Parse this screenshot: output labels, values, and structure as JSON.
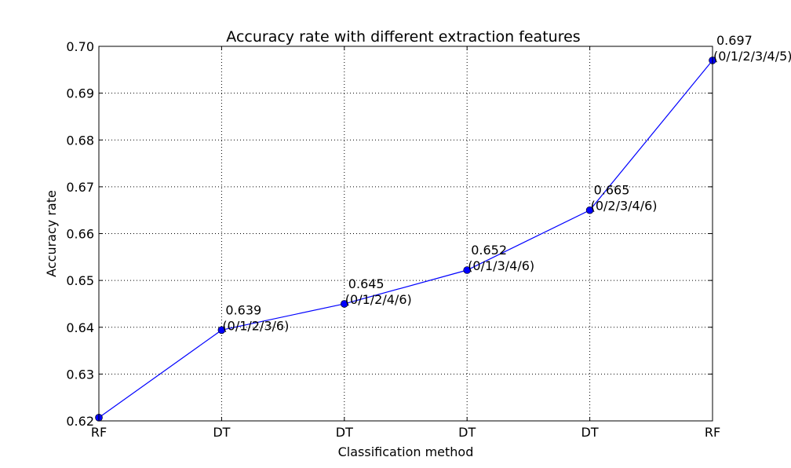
{
  "chart_data": {
    "type": "line",
    "title": "Accuracy rate with different extraction features",
    "xlabel": "Classification method",
    "ylabel": "Accuracy rate",
    "categories": [
      "RF",
      "DT",
      "DT",
      "DT",
      "DT",
      "RF"
    ],
    "series": [
      {
        "values": [
          0.6207,
          0.6394,
          0.645,
          0.6522,
          0.665,
          0.697
        ],
        "color": "#0000ff"
      }
    ],
    "annotations": [
      {
        "index": 1,
        "value": "0.639",
        "features": "(0/1/2/3/6)"
      },
      {
        "index": 2,
        "value": "0.645",
        "features": "(0/1/2/4/6)"
      },
      {
        "index": 3,
        "value": "0.652",
        "features": "(0/1/3/4/6)"
      },
      {
        "index": 4,
        "value": "0.665",
        "features": "(0/2/3/4/6)"
      },
      {
        "index": 5,
        "value": "0.697",
        "features": "(0/1/2/3/4/5)"
      }
    ],
    "ylim": [
      0.62,
      0.7
    ],
    "yticks": [
      "0.62",
      "0.63",
      "0.64",
      "0.65",
      "0.66",
      "0.67",
      "0.68",
      "0.69",
      "0.70"
    ],
    "grid": true,
    "marker": "circle",
    "line_color": "#0000ff",
    "marker_color": "#0000ff"
  }
}
